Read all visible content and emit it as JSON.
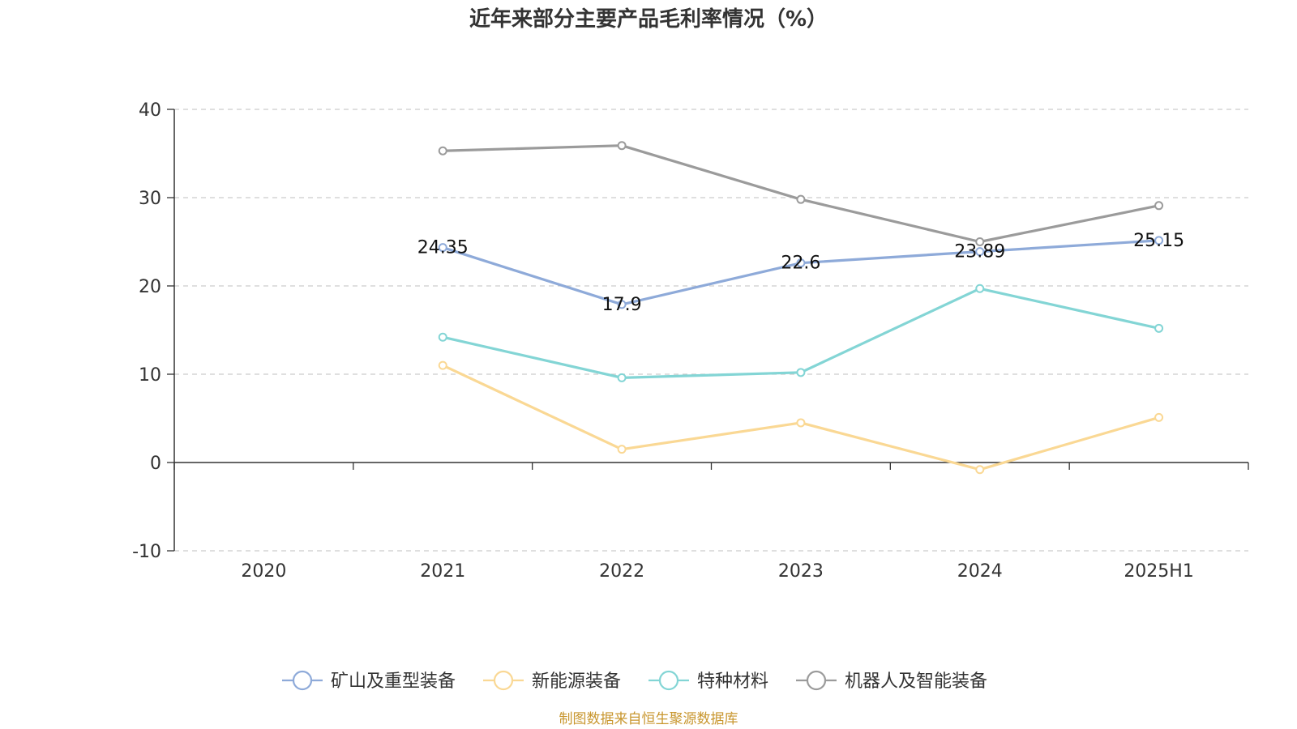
{
  "chart_data": {
    "type": "line",
    "title": "近年来部分主要产品毛利率情况（%）",
    "categories": [
      "2020",
      "2021",
      "2022",
      "2023",
      "2024",
      "2025H1"
    ],
    "ylim": [
      -10,
      40
    ],
    "yticks": [
      -10,
      0,
      10,
      20,
      30,
      40
    ],
    "grid": true,
    "legend_position": "bottom",
    "series": [
      {
        "name": "矿山及重型装备",
        "color": "#8eaad9",
        "values": [
          null,
          24.35,
          17.9,
          22.6,
          23.89,
          25.15
        ],
        "labels": [
          null,
          "24.35",
          "17.9",
          "22.6",
          "23.89",
          "25.15"
        ]
      },
      {
        "name": "新能源装备",
        "color": "#fad894",
        "values": [
          null,
          11.0,
          1.5,
          4.5,
          -0.8,
          5.1
        ]
      },
      {
        "name": "特种材料",
        "color": "#83d5d5",
        "values": [
          null,
          14.2,
          9.6,
          10.2,
          19.7,
          15.2
        ]
      },
      {
        "name": "机器人及智能装备",
        "color": "#9b9b9b",
        "values": [
          null,
          35.3,
          35.9,
          29.8,
          25.0,
          29.1
        ]
      }
    ]
  },
  "source_note": "制图数据来自恒生聚源数据库"
}
